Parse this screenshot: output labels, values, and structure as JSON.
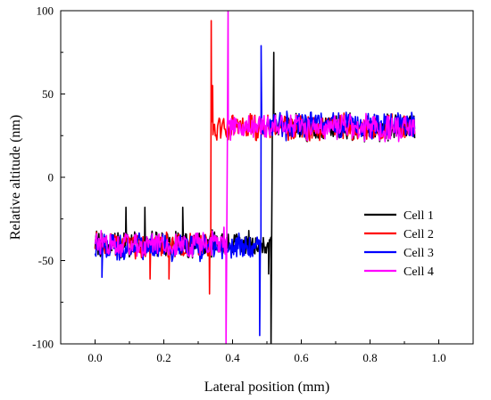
{
  "chart_data": {
    "type": "line",
    "title": "",
    "xlabel": "Lateral position (mm)",
    "ylabel": "Relative altitude (nm)",
    "xlim": [
      -0.1,
      1.1
    ],
    "ylim": [
      -100,
      100
    ],
    "x_ticks": [
      0.0,
      0.2,
      0.4,
      0.6,
      0.8,
      1.0
    ],
    "x_tick_labels": [
      "0.0",
      "0.2",
      "0.4",
      "0.6",
      "0.8",
      "1.0"
    ],
    "y_ticks": [
      -100,
      -50,
      0,
      50,
      100
    ],
    "y_tick_labels": [
      "-100",
      "-50",
      "0",
      "50",
      "100"
    ],
    "grid": false,
    "legend_position": "lower-right",
    "series": [
      {
        "name": "Cell 1",
        "color": "#000000",
        "x_start": 0.0,
        "x_end": 0.93,
        "step_x": 0.515,
        "low_level": -40,
        "high_level": 30,
        "noise": 7,
        "spike_x": [
          0.09,
          0.145,
          0.255,
          0.505,
          0.512,
          0.52
        ],
        "spike_y": [
          -18,
          -18,
          -18,
          -58,
          -100,
          75
        ]
      },
      {
        "name": "Cell 2",
        "color": "#ff0000",
        "x_start": 0.0,
        "x_end": 0.93,
        "step_x": 0.337,
        "low_level": -40,
        "high_level": 30,
        "noise": 7,
        "spike_x": [
          0.16,
          0.215,
          0.333,
          0.338,
          0.342
        ],
        "spike_y": [
          -61,
          -61,
          -70,
          94,
          55
        ]
      },
      {
        "name": "Cell 3",
        "color": "#0000ff",
        "x_start": 0.0,
        "x_end": 0.93,
        "step_x": 0.483,
        "low_level": -42,
        "high_level": 31,
        "noise": 7,
        "spike_x": [
          0.02,
          0.479,
          0.483
        ],
        "spike_y": [
          -60,
          -95,
          79
        ]
      },
      {
        "name": "Cell 4",
        "color": "#ff00ff",
        "x_start": 0.0,
        "x_end": 0.93,
        "step_x": 0.385,
        "low_level": -40,
        "high_level": 30,
        "noise": 7,
        "spike_x": [
          0.375,
          0.381,
          0.387
        ],
        "spike_y": [
          -30,
          -100,
          100
        ]
      }
    ]
  }
}
